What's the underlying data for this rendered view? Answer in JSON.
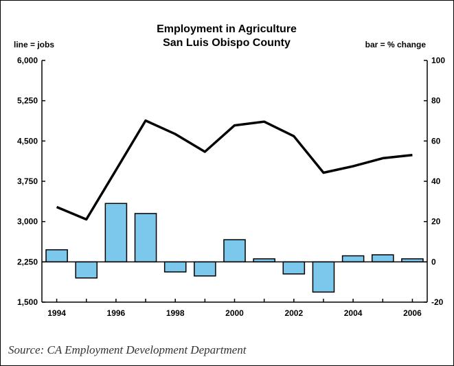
{
  "chart_data": {
    "type": "bar+line",
    "title": [
      "Employment in Agriculture",
      "San Luis Obispo County"
    ],
    "left_axis_label": "line = jobs",
    "right_axis_label": "bar = % change",
    "years": [
      1994,
      1995,
      1996,
      1997,
      1998,
      1999,
      2000,
      2001,
      2002,
      2003,
      2004,
      2005,
      2006
    ],
    "x_tick_labels": [
      "1994",
      "1996",
      "1998",
      "2000",
      "2002",
      "2004",
      "2006"
    ],
    "left_ticks": [
      "6,000",
      "5,250",
      "4,500",
      "3,750",
      "3,000",
      "2,250",
      "1,500"
    ],
    "left_range": [
      1500,
      6000
    ],
    "right_ticks": [
      "100",
      "80",
      "60",
      "40",
      "20",
      "0",
      "-20"
    ],
    "right_range": [
      -20,
      100
    ],
    "series": [
      {
        "name": "jobs",
        "kind": "line",
        "axis": "left",
        "values": [
          3270,
          3040,
          3960,
          4880,
          4630,
          4300,
          4790,
          4860,
          4590,
          3910,
          4030,
          4180,
          4240
        ]
      },
      {
        "name": "% change",
        "kind": "bar",
        "axis": "right",
        "values": [
          6,
          -8,
          29,
          24,
          -5,
          -7,
          11,
          1.5,
          -6,
          -15,
          3,
          3.5,
          1.5
        ]
      }
    ],
    "bar_color": "#7cc8ec",
    "line_color": "#000000"
  },
  "source": "Source: CA Employment Development Department"
}
